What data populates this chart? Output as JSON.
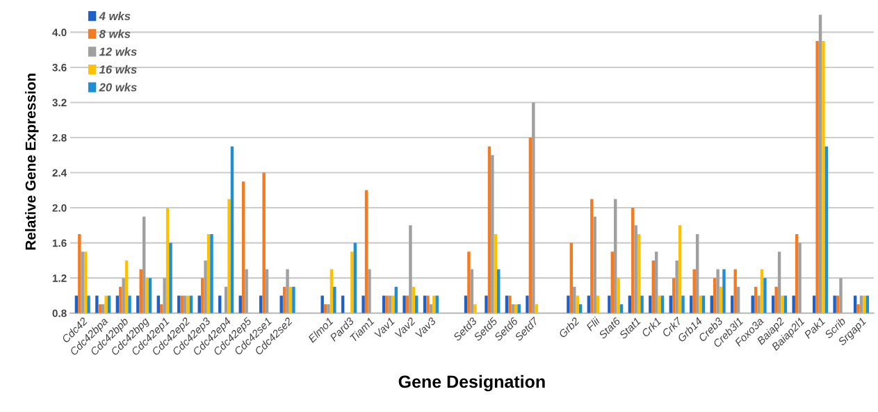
{
  "chart_data": {
    "type": "bar",
    "xlabel": "Gene Designation",
    "ylabel": "Relative Gene Expression",
    "categories": [
      "Cdc42",
      "Cdc42bpa",
      "Cdc42bpb",
      "Cdc42bpg",
      "Cdc42ep1",
      "Cdc42ep2",
      "Cdc42ep3",
      "Cdc42ep4",
      "Cdc42ep5",
      "Cdc42se1",
      "Cdc42se2",
      null,
      "Elmo1",
      "Pard3",
      "Tiam1",
      "Vav1",
      "Vav2",
      "Vav3",
      null,
      "Setd3",
      "Setd5",
      "Setd6",
      "Setd7",
      null,
      "Grb2",
      "Flii",
      "Stat6",
      "Stat1",
      "Crk1",
      "Crk7",
      "Grb14",
      "Creb3",
      "Creb3l1",
      "Foxo3a",
      "Baiap2",
      "Baiap2l1",
      "Pak1",
      "Scrib",
      "Srgap1"
    ],
    "series": [
      {
        "name": "4 wks",
        "color": "#1e62c8",
        "values": [
          1.0,
          1.0,
          1.0,
          1.0,
          1.0,
          1.0,
          1.0,
          1.0,
          1.0,
          1.0,
          1.0,
          null,
          1.0,
          1.0,
          1.0,
          1.0,
          1.0,
          1.0,
          null,
          1.0,
          1.0,
          1.0,
          1.0,
          null,
          1.0,
          1.0,
          1.0,
          1.0,
          1.0,
          1.0,
          1.0,
          1.0,
          1.0,
          1.0,
          1.0,
          1.0,
          1.0,
          1.0,
          1.0
        ]
      },
      {
        "name": "8 wks",
        "color": "#f47b20",
        "values": [
          1.7,
          0.9,
          1.1,
          1.3,
          0.9,
          1.0,
          1.2,
          null,
          2.3,
          2.4,
          1.1,
          null,
          0.9,
          null,
          2.2,
          1.0,
          1.0,
          1.0,
          null,
          1.5,
          2.7,
          1.0,
          2.8,
          null,
          1.6,
          2.1,
          1.5,
          2.0,
          1.4,
          1.2,
          1.3,
          1.2,
          1.3,
          1.1,
          1.1,
          1.7,
          3.9,
          1.0,
          0.9
        ]
      },
      {
        "name": "12 wks",
        "color": "#a0a0a0",
        "values": [
          1.5,
          0.9,
          1.2,
          1.9,
          1.2,
          1.0,
          1.4,
          1.1,
          1.3,
          1.3,
          1.3,
          null,
          0.9,
          null,
          1.3,
          1.0,
          1.8,
          0.9,
          null,
          1.3,
          2.6,
          0.9,
          3.2,
          null,
          1.1,
          1.9,
          2.1,
          1.8,
          1.5,
          1.4,
          1.7,
          1.3,
          1.1,
          1.0,
          1.5,
          1.6,
          4.2,
          1.2,
          1.0
        ]
      },
      {
        "name": "16 wks",
        "color": "#ffc000",
        "values": [
          1.5,
          1.0,
          1.4,
          1.2,
          2.0,
          1.0,
          1.7,
          2.1,
          null,
          null,
          1.1,
          null,
          1.3,
          1.5,
          null,
          1.0,
          1.1,
          1.0,
          null,
          0.9,
          1.7,
          0.9,
          0.9,
          null,
          1.0,
          1.0,
          1.2,
          1.7,
          1.0,
          1.8,
          1.0,
          1.1,
          null,
          1.3,
          1.0,
          null,
          3.9,
          null,
          1.0
        ]
      },
      {
        "name": "20 wks",
        "color": "#1e8fd4",
        "values": [
          1.0,
          1.0,
          1.0,
          1.2,
          1.6,
          1.0,
          1.7,
          2.7,
          null,
          null,
          1.1,
          null,
          1.1,
          1.6,
          null,
          1.1,
          1.0,
          1.0,
          null,
          null,
          1.3,
          0.9,
          null,
          null,
          0.9,
          null,
          0.9,
          1.0,
          1.0,
          1.0,
          1.0,
          1.3,
          null,
          1.2,
          1.0,
          null,
          2.7,
          null,
          1.0
        ]
      }
    ],
    "ylim": [
      0.8,
      4.25
    ],
    "yticks": [
      {
        "value": 0.8,
        "label": "0.8"
      },
      {
        "value": 1.2,
        "label": "1.2"
      },
      {
        "value": 1.6,
        "label": "1.6"
      },
      {
        "value": 2.0,
        "label": "2.0"
      },
      {
        "value": 2.4,
        "label": "2.4"
      },
      {
        "value": 2.8,
        "label": "2.8"
      },
      {
        "value": 3.2,
        "label": "3.2"
      },
      {
        "value": 3.6,
        "label": "3.6"
      },
      {
        "value": 4.0,
        "label": "4.0"
      }
    ],
    "grid": "y",
    "legend": "top left"
  }
}
